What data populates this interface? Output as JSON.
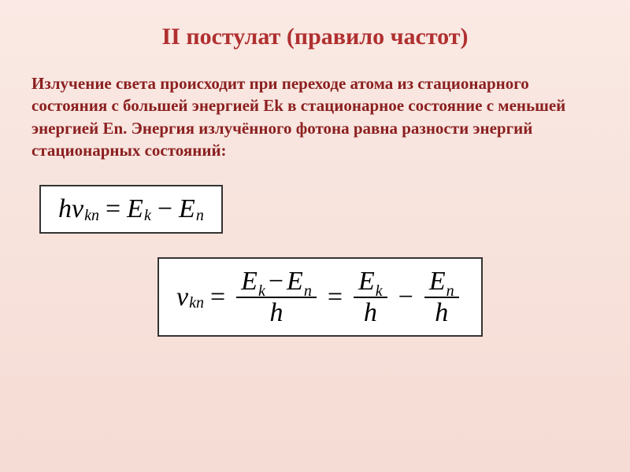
{
  "title": "II постулат (правило частот)",
  "body_text": "Излучение света происходит при переходе атома из стационарного состояния с большей энергией Ek в стационарное состояние с меньшей энергией En. Энергия излучённого фотона равна разности энергий стационарных состояний:",
  "formula1": {
    "h": "h",
    "nu": "v",
    "sub_kn": "kn",
    "eq": "=",
    "E": "E",
    "sub_k": "k",
    "minus": "−",
    "sub_n": "n"
  },
  "formula2": {
    "nu": "v",
    "sub_kn": "kn",
    "eq": "=",
    "E": "E",
    "sub_k": "k",
    "minus": "−",
    "sub_n": "n",
    "h": "h"
  },
  "colors": {
    "title": "#b03030",
    "body": "#8b2020",
    "border": "#333333",
    "bg_top": "#fae9e4",
    "bg_bottom": "#f5dcd4"
  },
  "fonts": {
    "title_size": 30,
    "body_size": 21,
    "formula_size": 34,
    "sub_size": 20
  }
}
